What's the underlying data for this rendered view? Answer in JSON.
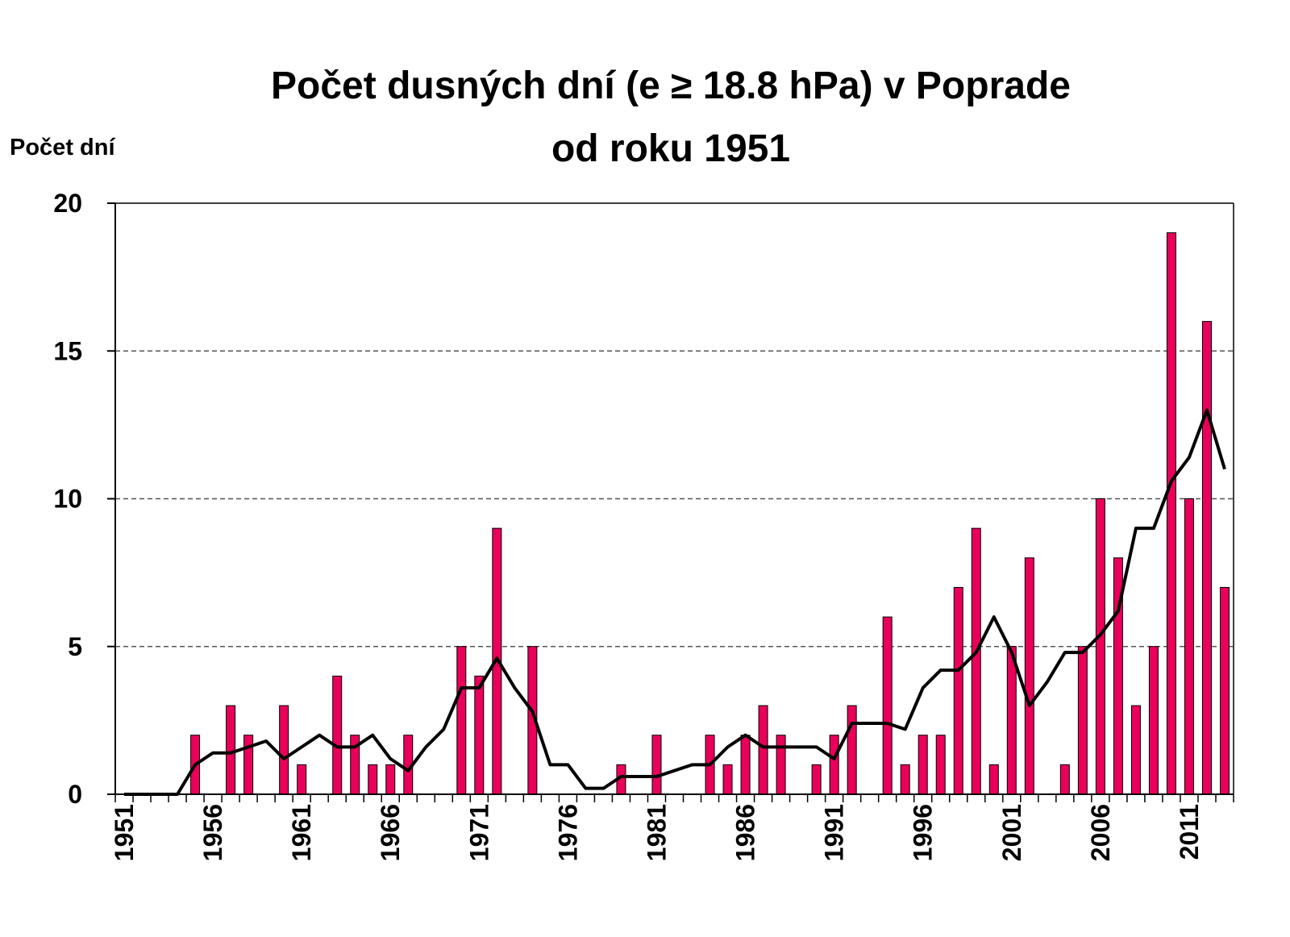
{
  "chart_data": {
    "type": "bar-line",
    "title": [
      "Počet dusných dní (e ≥ 18.8 hPa) v Poprade",
      "od roku 1951"
    ],
    "y_label": "Počet dní",
    "categories": [
      "1951",
      null,
      null,
      null,
      null,
      "1956",
      null,
      null,
      null,
      null,
      "1961",
      null,
      null,
      null,
      null,
      "1966",
      null,
      null,
      null,
      null,
      "1971",
      null,
      null,
      null,
      null,
      "1976",
      null,
      null,
      null,
      null,
      "1981",
      null,
      null,
      null,
      null,
      "1986",
      null,
      null,
      null,
      null,
      "1991",
      null,
      null,
      null,
      null,
      "1996",
      null,
      null,
      null,
      null,
      "2001",
      null,
      null,
      null,
      null,
      "2006",
      null,
      null,
      null,
      null,
      "2011",
      null,
      null
    ],
    "series": [
      {
        "type": "bar",
        "color": "#e8005a",
        "values": [
          0,
          0,
          0,
          0,
          2,
          0,
          3,
          2,
          0,
          3,
          1,
          0,
          4,
          2,
          1,
          1,
          2,
          0,
          0,
          5,
          4,
          9,
          0,
          5,
          0,
          0,
          0,
          0,
          1,
          0,
          2,
          0,
          0,
          2,
          1,
          2,
          3,
          2,
          0,
          1,
          2,
          3,
          0,
          6,
          1,
          2,
          2,
          7,
          9,
          1,
          5,
          8,
          0,
          1,
          5,
          10,
          8,
          3,
          5,
          19,
          10,
          16,
          7
        ]
      },
      {
        "type": "line",
        "color": "#000000",
        "values": [
          0,
          0,
          0,
          0,
          1.0,
          1.4,
          1.4,
          1.6,
          1.8,
          1.2,
          1.6,
          2.0,
          1.6,
          1.6,
          2.0,
          1.2,
          0.8,
          1.6,
          2.2,
          3.6,
          3.6,
          4.6,
          3.6,
          2.8,
          1.0,
          1.0,
          0.2,
          0.2,
          0.6,
          0.6,
          0.6,
          0.8,
          1.0,
          1.0,
          1.6,
          2.0,
          1.6,
          1.6,
          1.6,
          1.6,
          1.2,
          2.4,
          2.4,
          2.4,
          2.2,
          3.6,
          4.2,
          4.2,
          4.8,
          6.0,
          4.8,
          3.0,
          3.8,
          4.8,
          4.8,
          5.4,
          6.2,
          9.0,
          9.0,
          10.6,
          11.4,
          13.0,
          11.0
        ]
      }
    ],
    "ylim": [
      0,
      20
    ],
    "yticks": [
      0,
      5,
      10,
      15,
      20
    ],
    "grid": true
  }
}
